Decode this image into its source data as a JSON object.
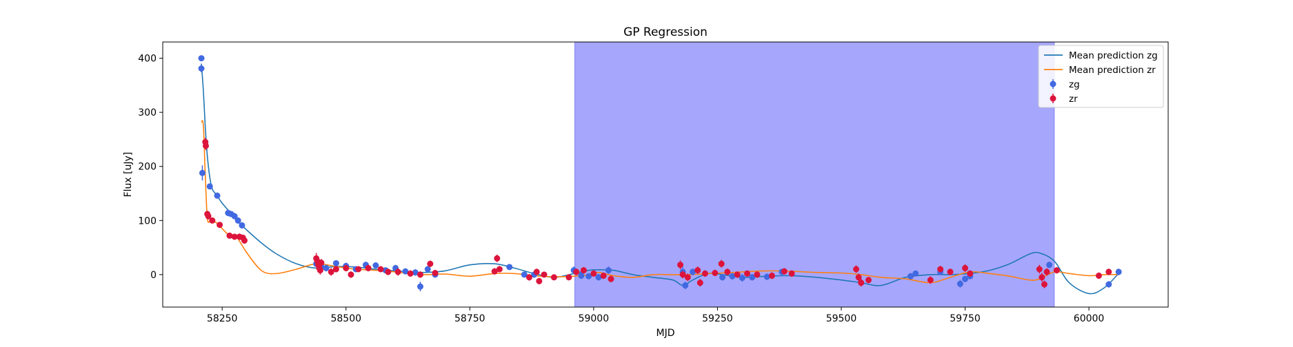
{
  "chart_data": {
    "type": "scatter",
    "title": "GP Regression",
    "xlabel": "MJD",
    "ylabel": "Flux [uJy]",
    "xlim": [
      58130,
      60160
    ],
    "ylim": [
      -60,
      430
    ],
    "xticks": [
      58250,
      58500,
      58750,
      59000,
      59250,
      59500,
      59750,
      60000
    ],
    "yticks": [
      0,
      100,
      200,
      300,
      400
    ],
    "grid": false,
    "legend_position": "top-right",
    "shaded_region": {
      "x_start": 58962,
      "x_end": 59930,
      "color": "#a6a6fc"
    },
    "series": [
      {
        "name": "Mean prediction zg",
        "kind": "line",
        "color": "#1f77b4",
        "x": [
          58208,
          58212,
          58216,
          58220,
          58225,
          58230,
          58238,
          58250,
          58265,
          58280,
          58300,
          58330,
          58360,
          58400,
          58440,
          58480,
          58520,
          58560,
          58600,
          58650,
          58700,
          58750,
          58800,
          58840,
          58880,
          58920,
          58960,
          58990,
          59010,
          59040,
          59080,
          59120,
          59160,
          59180,
          59200,
          59230,
          59260,
          59300,
          59350,
          59400,
          59450,
          59500,
          59540,
          59580,
          59630,
          59680,
          59720,
          59760,
          59800,
          59840,
          59880,
          59900,
          59930,
          59960,
          60000,
          60030,
          60060
        ],
        "y": [
          390,
          340,
          270,
          220,
          180,
          158,
          148,
          132,
          116,
          100,
          82,
          58,
          38,
          20,
          12,
          15,
          14,
          10,
          7,
          4,
          7,
          18,
          20,
          12,
          2,
          -5,
          2,
          8,
          9,
          8,
          0,
          -5,
          -10,
          -20,
          -10,
          2,
          0,
          -5,
          -3,
          -2,
          -5,
          -10,
          -15,
          -20,
          -5,
          0,
          0,
          2,
          8,
          20,
          38,
          40,
          25,
          -15,
          -35,
          -25,
          2
        ]
      },
      {
        "name": "Mean prediction zr",
        "kind": "line",
        "color": "#ff7f0e",
        "x": [
          58208,
          58212,
          58216,
          58220,
          58225,
          58230,
          58238,
          58250,
          58265,
          58280,
          58300,
          58330,
          58360,
          58400,
          58440,
          58480,
          58520,
          58560,
          58600,
          58650,
          58700,
          58750,
          58800,
          58840,
          58880,
          58920,
          58960,
          58990,
          59010,
          59040,
          59080,
          59120,
          59160,
          59180,
          59200,
          59230,
          59260,
          59300,
          59350,
          59400,
          59450,
          59500,
          59540,
          59580,
          59630,
          59680,
          59720,
          59760,
          59800,
          59840,
          59880,
          59900,
          59930,
          59960,
          60000,
          60030,
          60060
        ],
        "y": [
          282,
          275,
          180,
          105,
          98,
          100,
          96,
          85,
          72,
          68,
          40,
          7,
          2,
          10,
          20,
          15,
          10,
          8,
          5,
          0,
          1,
          -3,
          2,
          2,
          -2,
          -4,
          -3,
          0,
          4,
          -2,
          -5,
          0,
          0,
          0,
          0,
          2,
          3,
          5,
          7,
          6,
          4,
          3,
          0,
          -5,
          -8,
          -15,
          -5,
          5,
          2,
          -3,
          -10,
          -8,
          5,
          2,
          -2,
          0,
          0
        ]
      },
      {
        "name": "zg",
        "kind": "errorbar",
        "color": "#4169e1",
        "points": [
          [
            58208,
            400,
            5
          ],
          [
            58208,
            381,
            7
          ],
          [
            58210,
            188,
            14
          ],
          [
            58225,
            163,
            5
          ],
          [
            58240,
            146,
            5
          ],
          [
            58262,
            114,
            6
          ],
          [
            58268,
            112,
            5
          ],
          [
            58275,
            108,
            6
          ],
          [
            58282,
            100,
            6
          ],
          [
            58290,
            91,
            6
          ],
          [
            58440,
            20,
            6
          ],
          [
            58450,
            15,
            5
          ],
          [
            58460,
            12,
            6
          ],
          [
            58480,
            21,
            5
          ],
          [
            58500,
            16,
            6
          ],
          [
            58520,
            10,
            5
          ],
          [
            58540,
            18,
            6
          ],
          [
            58560,
            17,
            5
          ],
          [
            58580,
            8,
            5
          ],
          [
            58600,
            12,
            6
          ],
          [
            58620,
            6,
            5
          ],
          [
            58640,
            4,
            6
          ],
          [
            58650,
            -22,
            9
          ],
          [
            58665,
            10,
            6
          ],
          [
            58680,
            0,
            5
          ],
          [
            58830,
            14,
            5
          ],
          [
            58860,
            0,
            5
          ],
          [
            58880,
            0,
            6
          ],
          [
            58960,
            8,
            7
          ],
          [
            58975,
            -2,
            6
          ],
          [
            58990,
            -3,
            5
          ],
          [
            59010,
            -5,
            6
          ],
          [
            59030,
            8,
            7
          ],
          [
            59180,
            5,
            9
          ],
          [
            59185,
            -20,
            7
          ],
          [
            59200,
            5,
            6
          ],
          [
            59260,
            -5,
            6
          ],
          [
            59280,
            -3,
            6
          ],
          [
            59300,
            -6,
            7
          ],
          [
            59320,
            -5,
            6
          ],
          [
            59350,
            -4,
            6
          ],
          [
            59380,
            5,
            6
          ],
          [
            59640,
            -3,
            6
          ],
          [
            59650,
            2,
            5
          ],
          [
            59700,
            5,
            6
          ],
          [
            59740,
            -17,
            7
          ],
          [
            59750,
            -8,
            6
          ],
          [
            59760,
            -3,
            5
          ],
          [
            59920,
            18,
            6
          ],
          [
            60040,
            -18,
            6
          ],
          [
            60060,
            5,
            6
          ]
        ]
      },
      {
        "name": "zr",
        "kind": "errorbar",
        "color": "#dc143c",
        "points": [
          [
            58216,
            245,
            8
          ],
          [
            58217,
            238,
            8
          ],
          [
            58220,
            112,
            6
          ],
          [
            58222,
            108,
            6
          ],
          [
            58230,
            100,
            5
          ],
          [
            58245,
            92,
            5
          ],
          [
            58265,
            72,
            5
          ],
          [
            58275,
            70,
            5
          ],
          [
            58285,
            70,
            6
          ],
          [
            58292,
            68,
            6
          ],
          [
            58295,
            63,
            6
          ],
          [
            58440,
            30,
            10
          ],
          [
            58442,
            25,
            9
          ],
          [
            58444,
            18,
            9
          ],
          [
            58446,
            12,
            9
          ],
          [
            58448,
            8,
            8
          ],
          [
            58450,
            22,
            7
          ],
          [
            58470,
            5,
            7
          ],
          [
            58480,
            10,
            6
          ],
          [
            58500,
            12,
            6
          ],
          [
            58510,
            0,
            6
          ],
          [
            58525,
            10,
            5
          ],
          [
            58545,
            12,
            6
          ],
          [
            58570,
            10,
            5
          ],
          [
            58585,
            5,
            6
          ],
          [
            58605,
            5,
            7
          ],
          [
            58630,
            2,
            6
          ],
          [
            58650,
            0,
            6
          ],
          [
            58670,
            20,
            6
          ],
          [
            58680,
            3,
            5
          ],
          [
            58800,
            6,
            6
          ],
          [
            58805,
            30,
            7
          ],
          [
            58810,
            10,
            6
          ],
          [
            58870,
            -5,
            6
          ],
          [
            58885,
            5,
            6
          ],
          [
            58890,
            -12,
            6
          ],
          [
            58900,
            0,
            5
          ],
          [
            58920,
            -5,
            5
          ],
          [
            58950,
            -5,
            5
          ],
          [
            58965,
            5,
            6
          ],
          [
            58980,
            8,
            6
          ],
          [
            59000,
            2,
            6
          ],
          [
            59020,
            -2,
            6
          ],
          [
            59035,
            -8,
            6
          ],
          [
            59175,
            18,
            8
          ],
          [
            59180,
            0,
            7
          ],
          [
            59190,
            -5,
            7
          ],
          [
            59210,
            8,
            7
          ],
          [
            59215,
            -15,
            7
          ],
          [
            59225,
            2,
            6
          ],
          [
            59245,
            3,
            6
          ],
          [
            59258,
            20,
            7
          ],
          [
            59270,
            5,
            6
          ],
          [
            59290,
            0,
            6
          ],
          [
            59310,
            2,
            6
          ],
          [
            59330,
            0,
            6
          ],
          [
            59360,
            -2,
            6
          ],
          [
            59385,
            6,
            6
          ],
          [
            59400,
            2,
            6
          ],
          [
            59530,
            10,
            7
          ],
          [
            59535,
            -5,
            7
          ],
          [
            59540,
            -15,
            7
          ],
          [
            59555,
            -10,
            6
          ],
          [
            59680,
            -10,
            7
          ],
          [
            59700,
            10,
            6
          ],
          [
            59720,
            5,
            6
          ],
          [
            59750,
            12,
            7
          ],
          [
            59760,
            2,
            6
          ],
          [
            59900,
            10,
            8
          ],
          [
            59905,
            -5,
            8
          ],
          [
            59910,
            -18,
            7
          ],
          [
            59915,
            5,
            7
          ],
          [
            59935,
            8,
            6
          ],
          [
            60020,
            -2,
            6
          ],
          [
            60040,
            5,
            6
          ]
        ]
      }
    ],
    "legend": [
      "Mean prediction zg",
      "Mean prediction zr",
      "zg",
      "zr"
    ]
  }
}
